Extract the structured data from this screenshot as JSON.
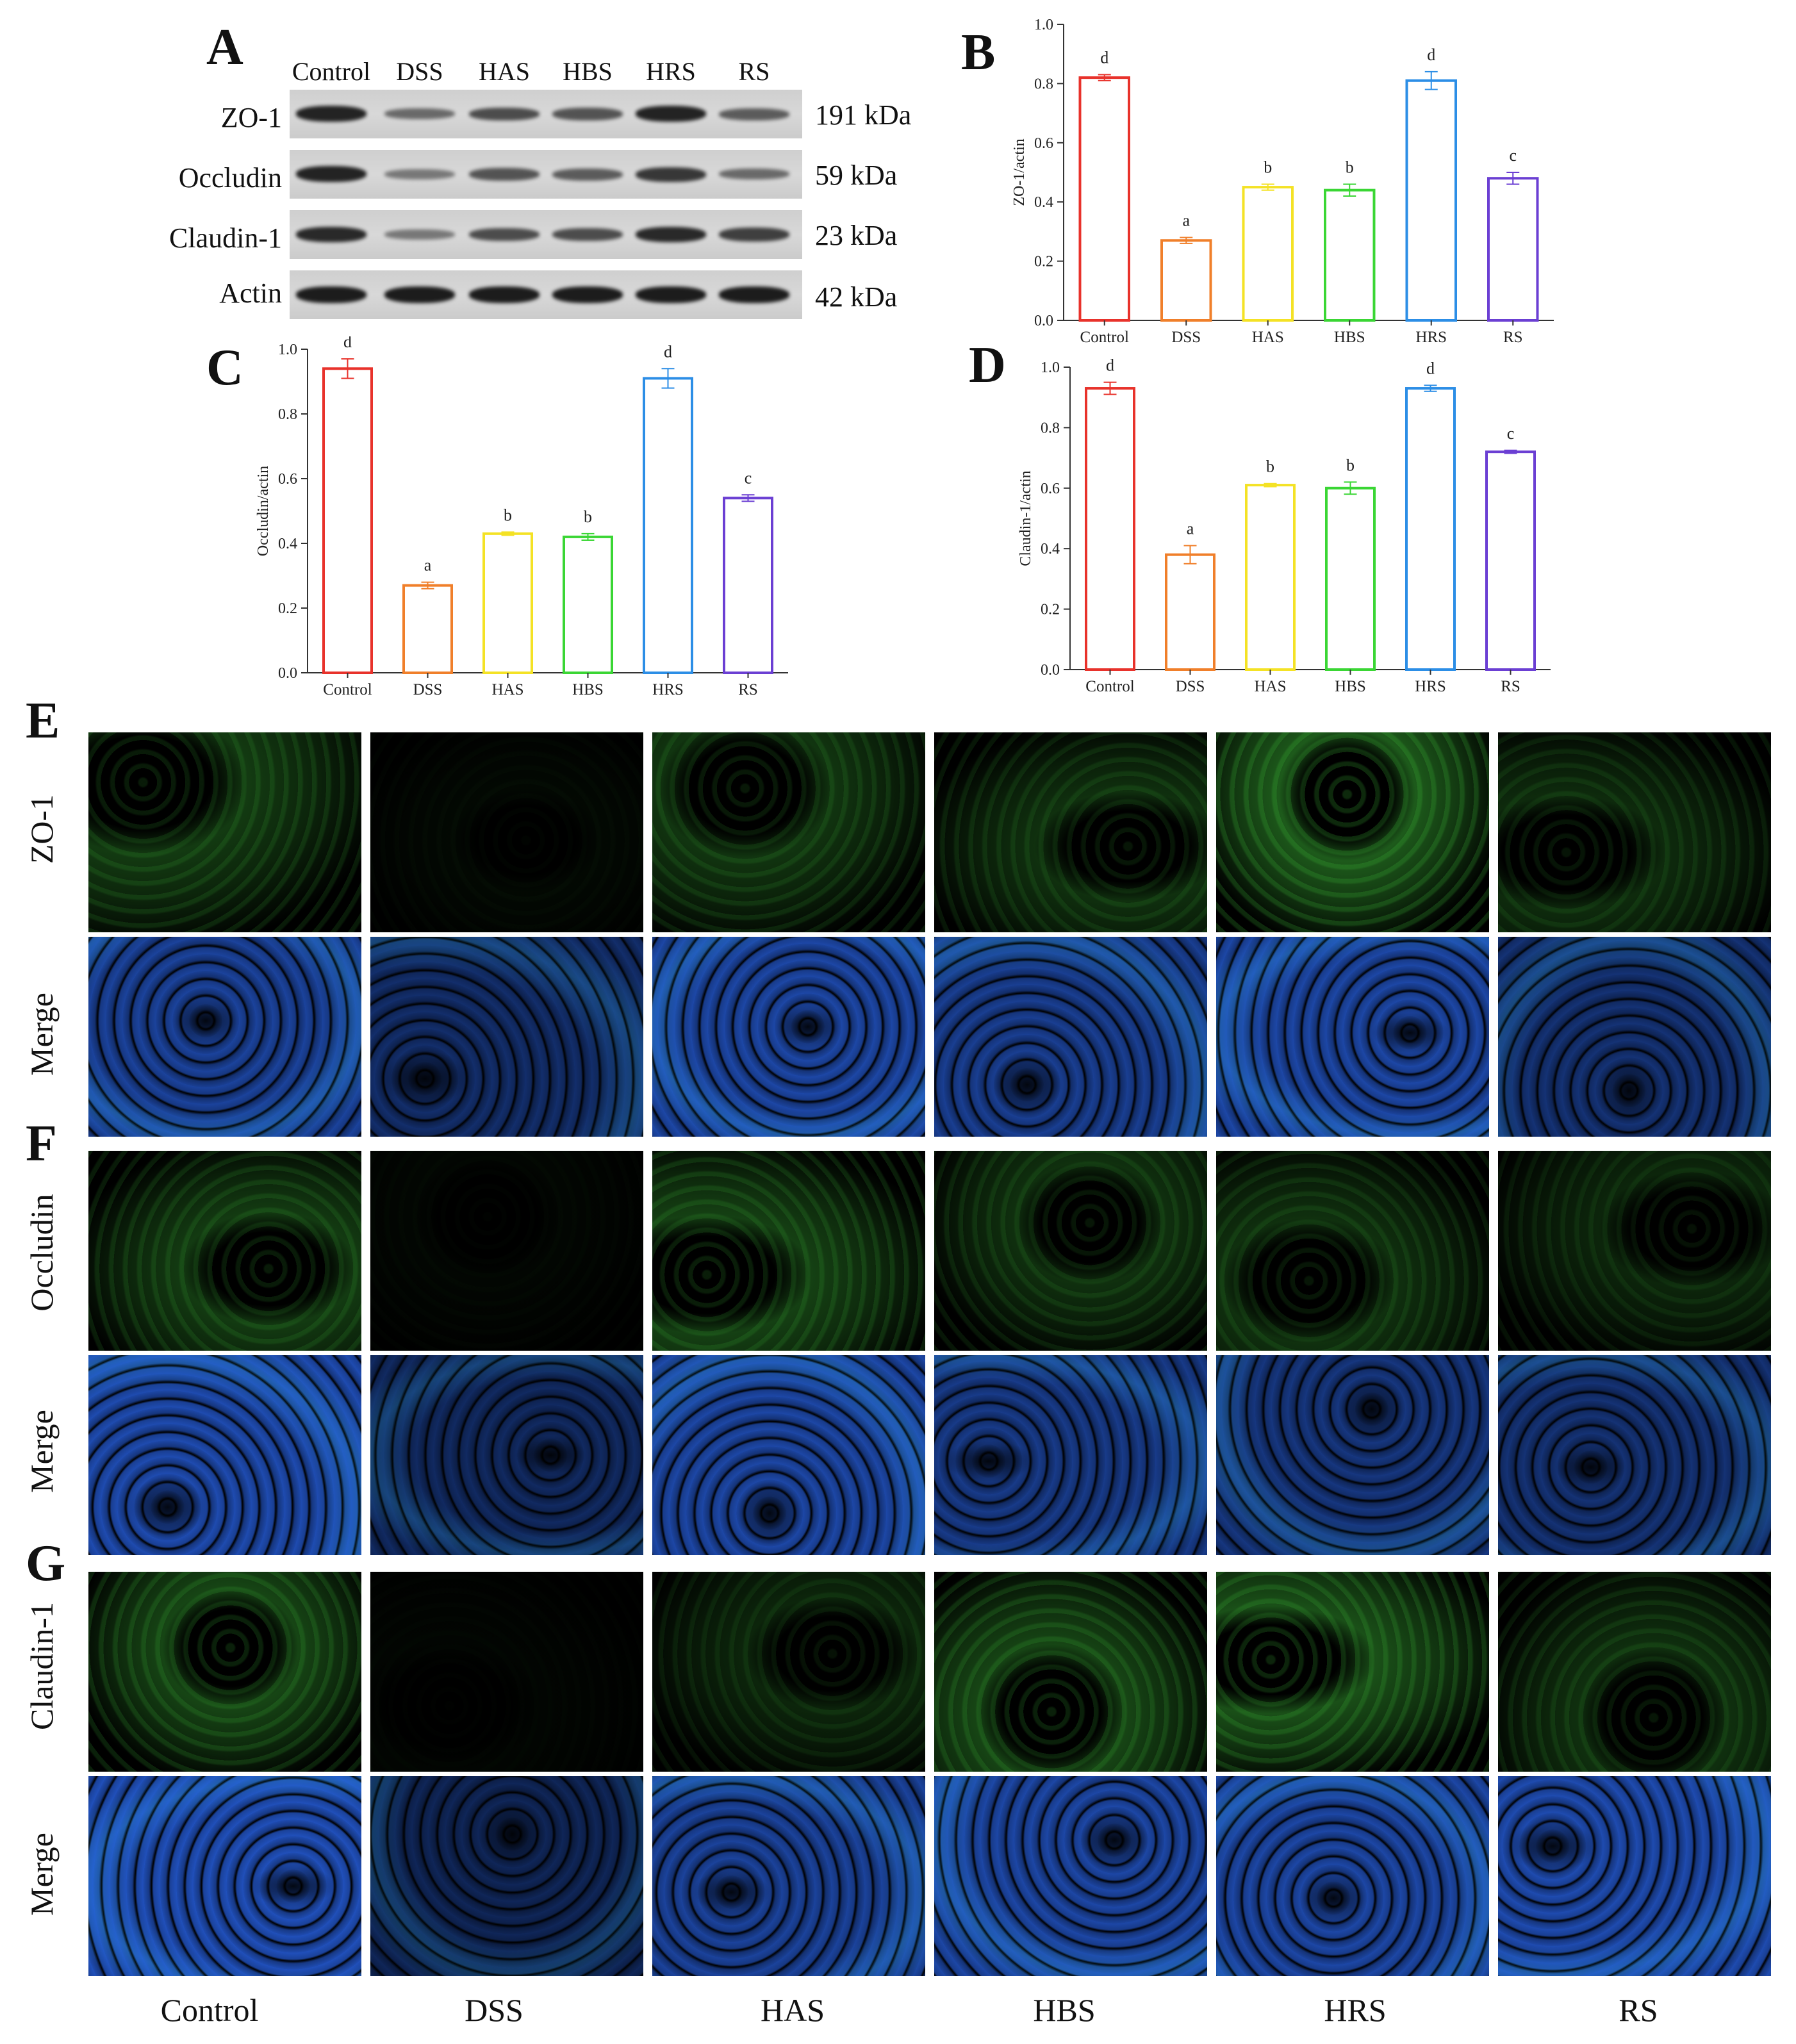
{
  "panel_labels": {
    "A": "A",
    "B": "B",
    "C": "C",
    "D": "D",
    "E": "E",
    "F": "F",
    "G": "G"
  },
  "western_blot": {
    "columns": [
      "Control",
      "DSS",
      "HAS",
      "HBS",
      "HRS",
      "RS"
    ],
    "rows": [
      {
        "protein": "ZO-1",
        "kda": "191 kDa"
      },
      {
        "protein": "Occludin",
        "kda": "59 kDa"
      },
      {
        "protein": "Claudin-1",
        "kda": "23 kDa"
      },
      {
        "protein": "Actin",
        "kda": "42 kDa"
      }
    ],
    "band_intensity": [
      [
        0.95,
        0.45,
        0.65,
        0.6,
        0.95,
        0.55
      ],
      [
        0.95,
        0.35,
        0.6,
        0.55,
        0.8,
        0.45
      ],
      [
        0.9,
        0.35,
        0.65,
        0.65,
        0.9,
        0.75
      ],
      [
        1,
        1,
        1,
        1,
        1,
        1
      ]
    ]
  },
  "colors": {
    "Control": "#e8322b",
    "DSS": "#f07f2a",
    "HAS": "#f4e225",
    "HBS": "#3ad634",
    "HRS": "#2c8ee6",
    "RS": "#6b3fd3",
    "if_green": "#3fc23a",
    "if_blue": "#2863e8",
    "if_cyan": "#38d8e8"
  },
  "chart_data": [
    {
      "panel": "B",
      "type": "bar",
      "categories": [
        "Control",
        "DSS",
        "HAS",
        "HBS",
        "HRS",
        "RS"
      ],
      "values": [
        0.82,
        0.27,
        0.45,
        0.44,
        0.81,
        0.48
      ],
      "errors": [
        0.01,
        0.01,
        0.01,
        0.02,
        0.03,
        0.02
      ],
      "significance": [
        "d",
        "a",
        "b",
        "b",
        "d",
        "c"
      ],
      "ylabel": "ZO-1/actin",
      "ylim": [
        0,
        1.0
      ],
      "yticks": [
        "0.0",
        "0.2",
        "0.4",
        "0.6",
        "0.8",
        "1.0"
      ]
    },
    {
      "panel": "C",
      "type": "bar",
      "categories": [
        "Control",
        "DSS",
        "HAS",
        "HBS",
        "HRS",
        "RS"
      ],
      "values": [
        0.94,
        0.27,
        0.43,
        0.42,
        0.91,
        0.54
      ],
      "errors": [
        0.03,
        0.01,
        0.005,
        0.01,
        0.03,
        0.01
      ],
      "significance": [
        "d",
        "a",
        "b",
        "b",
        "d",
        "c"
      ],
      "ylabel": "Occludin/actin",
      "ylim": [
        0,
        1.0
      ],
      "yticks": [
        "0.0",
        "0.2",
        "0.4",
        "0.6",
        "0.8",
        "1.0"
      ]
    },
    {
      "panel": "D",
      "type": "bar",
      "categories": [
        "Control",
        "DSS",
        "HAS",
        "HBS",
        "HRS",
        "RS"
      ],
      "values": [
        0.93,
        0.38,
        0.61,
        0.6,
        0.93,
        0.72
      ],
      "errors": [
        0.02,
        0.03,
        0.005,
        0.02,
        0.01,
        0.005
      ],
      "significance": [
        "d",
        "a",
        "b",
        "b",
        "d",
        "c"
      ],
      "ylabel": "Claudin-1/actin",
      "ylim": [
        0,
        1.0
      ],
      "yticks": [
        "0.0",
        "0.2",
        "0.4",
        "0.6",
        "0.8",
        "1.0"
      ]
    }
  ],
  "if_panels": {
    "columns": [
      "Control",
      "DSS",
      "HAS",
      "HBS",
      "HRS",
      "RS"
    ],
    "rows": [
      {
        "label": "ZO-1",
        "kind": "green",
        "intensity": [
          0.55,
          0.08,
          0.5,
          0.45,
          0.85,
          0.4
        ]
      },
      {
        "label": "Merge",
        "kind": "merge",
        "intensity": [
          0.8,
          0.55,
          0.85,
          0.75,
          0.85,
          0.6
        ]
      },
      {
        "label": "Occludin",
        "kind": "green",
        "intensity": [
          0.55,
          0.06,
          0.6,
          0.45,
          0.45,
          0.35
        ]
      },
      {
        "label": "Merge",
        "kind": "merge",
        "intensity": [
          0.9,
          0.5,
          0.85,
          0.7,
          0.65,
          0.6
        ]
      },
      {
        "label": "Claudin-1",
        "kind": "green",
        "intensity": [
          0.65,
          0.05,
          0.35,
          0.65,
          0.75,
          0.45
        ]
      },
      {
        "label": "Merge",
        "kind": "merge",
        "intensity": [
          0.95,
          0.45,
          0.8,
          0.85,
          0.85,
          0.9
        ]
      }
    ]
  },
  "bottom_labels": [
    "Control",
    "DSS",
    "HAS",
    "HBS",
    "HRS",
    "RS"
  ]
}
